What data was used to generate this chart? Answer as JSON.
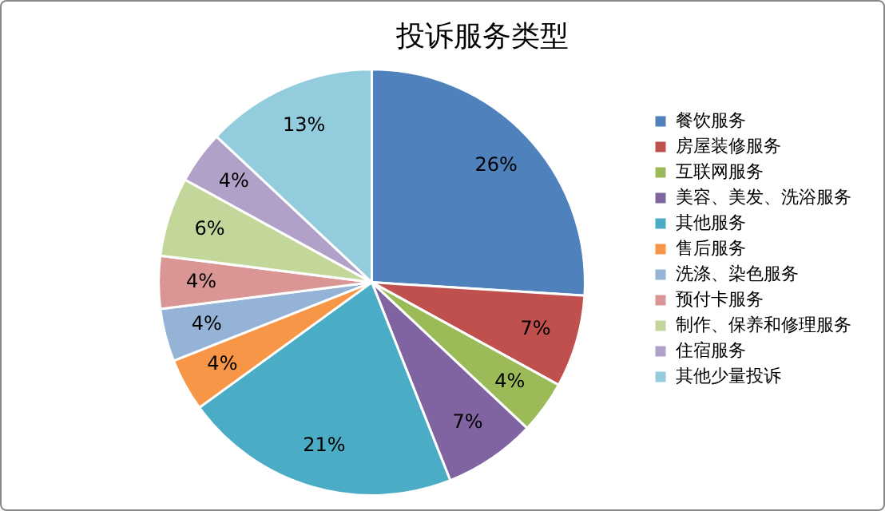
{
  "chart_data": {
    "type": "pie",
    "title": "投诉服务类型",
    "categories": [
      "餐饮服务",
      "房屋装修服务",
      "互联网服务",
      "美容、美发、洗浴服务",
      "其他服务",
      "售后服务",
      "洗涤、染色服务",
      "预付卡服务",
      "制作、保养和修理服务",
      "住宿服务",
      "其他少量投诉"
    ],
    "values": [
      26,
      7,
      4,
      7,
      21,
      4,
      4,
      4,
      6,
      4,
      13
    ],
    "colors": [
      "#4f81bd",
      "#c0504d",
      "#9bbb59",
      "#8064a2",
      "#4bacc6",
      "#f79646",
      "#95b3d7",
      "#da9694",
      "#c4d79b",
      "#b1a0c7",
      "#93cddd"
    ],
    "value_labels": [
      "26%",
      "7%",
      "4%",
      "7%",
      "21%",
      "4%",
      "4%",
      "4%",
      "6%",
      "4%",
      "13%"
    ],
    "legend": "right"
  }
}
